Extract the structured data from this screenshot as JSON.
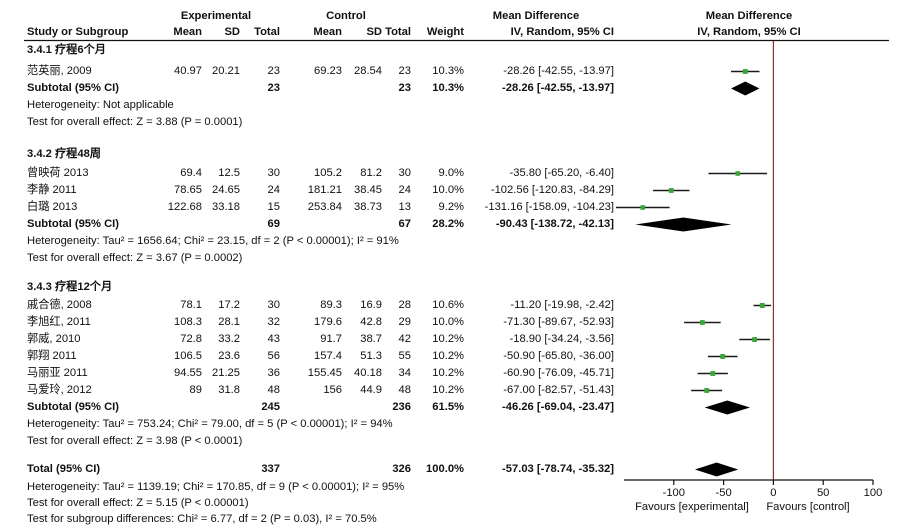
{
  "chart_data": {
    "type": "forest",
    "table_headers": {
      "group_experimental": "Experimental",
      "group_control": "Control",
      "group_effect_left": "Mean Difference",
      "group_effect_right": "Mean Difference",
      "study_col": "Study or Subgroup",
      "mean_e": "Mean",
      "sd_e": "SD",
      "total_e": "Total",
      "mean_c": "Mean",
      "sd_c": "SD",
      "total_c": "Total",
      "weight": "Weight",
      "ci_left": "IV, Random, 95% CI",
      "ci_right": "IV, Random, 95% CI"
    },
    "subgroups": [
      {
        "title": "3.4.1 疗程6个月",
        "studies": [
          {
            "name": "范英丽, 2009",
            "mean_e": "40.97",
            "sd_e": "20.21",
            "total_e": "23",
            "mean_c": "69.23",
            "sd_c": "28.54",
            "total_c": "23",
            "weight": "10.3%",
            "ci_text": "-28.26 [-42.55, -13.97]",
            "md": -28.26,
            "lo": -42.55,
            "hi": -13.97
          }
        ],
        "subtotal": {
          "label": "Subtotal (95% CI)",
          "total_e": "23",
          "total_c": "23",
          "weight": "10.3%",
          "ci_text": "-28.26 [-42.55, -13.97]",
          "md": -28.26,
          "lo": -42.55,
          "hi": -13.97
        },
        "heterogeneity": "Heterogeneity: Not applicable",
        "overall": "Test for overall effect: Z = 3.88 (P = 0.0001)"
      },
      {
        "title": "3.4.2 疗程48周",
        "studies": [
          {
            "name": "曾映荷 2013",
            "mean_e": "69.4",
            "sd_e": "12.5",
            "total_e": "30",
            "mean_c": "105.2",
            "sd_c": "81.2",
            "total_c": "30",
            "weight": "9.0%",
            "ci_text": "-35.80 [-65.20, -6.40]",
            "md": -35.8,
            "lo": -65.2,
            "hi": -6.4
          },
          {
            "name": "李静 2011",
            "mean_e": "78.65",
            "sd_e": "24.65",
            "total_e": "24",
            "mean_c": "181.21",
            "sd_c": "38.45",
            "total_c": "24",
            "weight": "10.0%",
            "ci_text": "-102.56 [-120.83, -84.29]",
            "md": -102.56,
            "lo": -120.83,
            "hi": -84.29
          },
          {
            "name": "白璐 2013",
            "mean_e": "122.68",
            "sd_e": "33.18",
            "total_e": "15",
            "mean_c": "253.84",
            "sd_c": "38.73",
            "total_c": "13",
            "weight": "9.2%",
            "ci_text": "-131.16 [-158.09, -104.23]",
            "md": -131.16,
            "lo": -158.09,
            "hi": -104.23
          }
        ],
        "subtotal": {
          "label": "Subtotal (95% CI)",
          "total_e": "69",
          "total_c": "67",
          "weight": "28.2%",
          "ci_text": "-90.43 [-138.72, -42.13]",
          "md": -90.43,
          "lo": -138.72,
          "hi": -42.13
        },
        "heterogeneity": "Heterogeneity: Tau² = 1656.64; Chi² = 23.15, df = 2 (P < 0.00001); I² = 91%",
        "overall": "Test for overall effect: Z = 3.67 (P = 0.0002)"
      },
      {
        "title": "3.4.3 疗程12个月",
        "studies": [
          {
            "name": "戚合德, 2008",
            "mean_e": "78.1",
            "sd_e": "17.2",
            "total_e": "30",
            "mean_c": "89.3",
            "sd_c": "16.9",
            "total_c": "28",
            "weight": "10.6%",
            "ci_text": "-11.20 [-19.98, -2.42]",
            "md": -11.2,
            "lo": -19.98,
            "hi": -2.42
          },
          {
            "name": "李旭红, 2011",
            "mean_e": "108.3",
            "sd_e": "28.1",
            "total_e": "32",
            "mean_c": "179.6",
            "sd_c": "42.8",
            "total_c": "29",
            "weight": "10.0%",
            "ci_text": "-71.30 [-89.67, -52.93]",
            "md": -71.3,
            "lo": -89.67,
            "hi": -52.93
          },
          {
            "name": "郭威, 2010",
            "mean_e": "72.8",
            "sd_e": "33.2",
            "total_e": "43",
            "mean_c": "91.7",
            "sd_c": "38.7",
            "total_c": "42",
            "weight": "10.2%",
            "ci_text": "-18.90 [-34.24, -3.56]",
            "md": -18.9,
            "lo": -34.24,
            "hi": -3.56
          },
          {
            "name": "郭翔 2011",
            "mean_e": "106.5",
            "sd_e": "23.6",
            "total_e": "56",
            "mean_c": "157.4",
            "sd_c": "51.3",
            "total_c": "55",
            "weight": "10.2%",
            "ci_text": "-50.90 [-65.80, -36.00]",
            "md": -50.9,
            "lo": -65.8,
            "hi": -36.0
          },
          {
            "name": "马丽亚 2011",
            "mean_e": "94.55",
            "sd_e": "21.25",
            "total_e": "36",
            "mean_c": "155.45",
            "sd_c": "40.18",
            "total_c": "34",
            "weight": "10.2%",
            "ci_text": "-60.90 [-76.09, -45.71]",
            "md": -60.9,
            "lo": -76.09,
            "hi": -45.71
          },
          {
            "name": "马爱玲, 2012",
            "mean_e": "89",
            "sd_e": "31.8",
            "total_e": "48",
            "mean_c": "156",
            "sd_c": "44.9",
            "total_c": "48",
            "weight": "10.2%",
            "ci_text": "-67.00 [-82.57, -51.43]",
            "md": -67.0,
            "lo": -82.57,
            "hi": -51.43
          }
        ],
        "subtotal": {
          "label": "Subtotal (95% CI)",
          "total_e": "245",
          "total_c": "236",
          "weight": "61.5%",
          "ci_text": "-46.26 [-69.04, -23.47]",
          "md": -46.26,
          "lo": -69.04,
          "hi": -23.47
        },
        "heterogeneity": "Heterogeneity: Tau² = 753.24; Chi² = 79.00, df = 5 (P < 0.00001); I² = 94%",
        "overall": "Test for overall effect: Z = 3.98 (P < 0.0001)"
      }
    ],
    "total": {
      "label": "Total (95% CI)",
      "total_e": "337",
      "total_c": "326",
      "weight": "100.0%",
      "ci_text": "-57.03 [-78.74, -35.32]",
      "md": -57.03,
      "lo": -78.74,
      "hi": -35.32
    },
    "total_heterogeneity": "Heterogeneity: Tau² = 1139.19; Chi² = 170.85, df = 9 (P < 0.00001); I² = 95%",
    "total_overall": "Test for overall effect: Z = 5.15 (P < 0.00001)",
    "subgroup_diff": "Test for subgroup differences: Chi² = 6.77, df = 2 (P = 0.03), I² = 70.5%",
    "axis": {
      "xlim": [
        -150,
        100
      ],
      "ticks": [
        -100,
        -50,
        0,
        50,
        100
      ],
      "favours_left": "Favours [experimental]",
      "favours_right": "Favours [control]"
    },
    "colors": {
      "square": "#3aa63a",
      "line": "#1a1a1a",
      "diamond": "#000000",
      "zero_line": "#8b2f2f",
      "rule": "#111111"
    }
  }
}
